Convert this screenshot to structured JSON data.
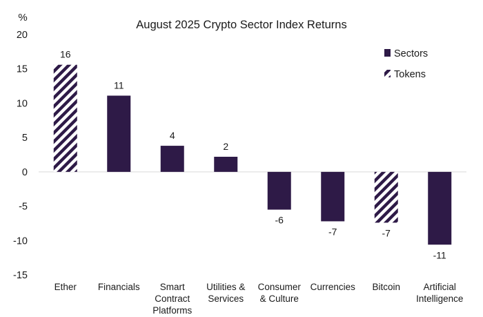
{
  "chart_data": {
    "type": "bar",
    "title": "August 2025 Crypto Sector Index Returns",
    "y_unit": "%",
    "ylim": [
      -15,
      20
    ],
    "yticks": [
      20,
      15,
      10,
      5,
      0,
      -5,
      -10,
      -15
    ],
    "legend_position": "top-right",
    "legend": [
      {
        "name": "Sectors",
        "style": "solid"
      },
      {
        "name": "Tokens",
        "style": "hatched"
      }
    ],
    "colors": {
      "bar": "#2e1a47",
      "hatch_bg": "#ffffff"
    },
    "categories": [
      {
        "lines": [
          "Ether"
        ],
        "value": 15.6,
        "label": "16",
        "style": "hatched"
      },
      {
        "lines": [
          "Financials"
        ],
        "value": 11.1,
        "label": "11",
        "style": "solid"
      },
      {
        "lines": [
          "Smart",
          "Contract",
          "Platforms"
        ],
        "value": 3.8,
        "label": "4",
        "style": "solid"
      },
      {
        "lines": [
          "Utilities &",
          "Services"
        ],
        "value": 2.2,
        "label": "2",
        "style": "solid"
      },
      {
        "lines": [
          "Consumer",
          "& Culture"
        ],
        "value": -5.5,
        "label": "-6",
        "style": "solid"
      },
      {
        "lines": [
          "Currencies"
        ],
        "value": -7.2,
        "label": "-7",
        "style": "solid"
      },
      {
        "lines": [
          "Bitcoin"
        ],
        "value": -7.4,
        "label": "-7",
        "style": "hatched"
      },
      {
        "lines": [
          "Artificial",
          "Intelligence"
        ],
        "value": -10.6,
        "label": "-11",
        "style": "solid"
      }
    ]
  }
}
